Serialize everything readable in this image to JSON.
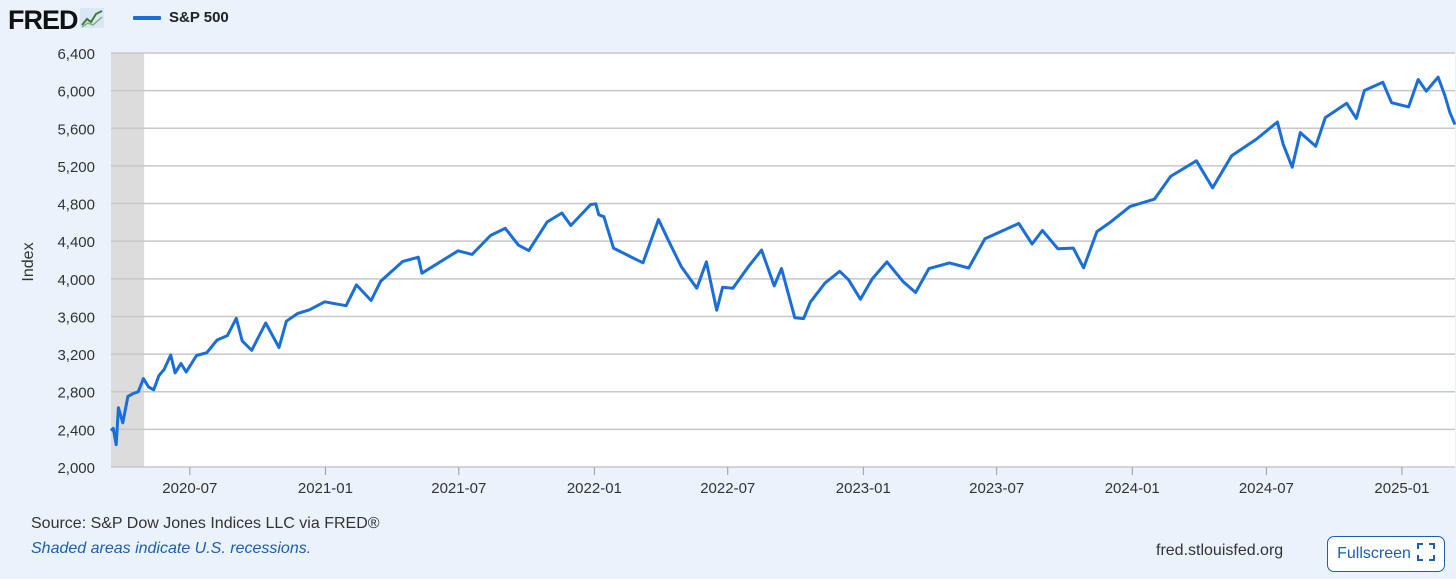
{
  "header": {
    "logo_text": "FRED",
    "logo_icon": "line-chart-icon",
    "series_label": "S&P 500"
  },
  "footer": {
    "source": "Source: S&P Dow Jones Indices LLC via FRED®",
    "note": "Shaded areas indicate U.S. recessions.",
    "url": "fred.stlouisfed.org",
    "fullscreen_label": "Fullscreen",
    "fullscreen_icon": "fullscreen-icon"
  },
  "colors": {
    "line": "#1a6ed8",
    "background": "#eaf2fc",
    "plot": "#ffffff",
    "grid": "#c8c8c8",
    "recession": "#dcdcdc",
    "accent": "#1b5fae"
  },
  "chart_data": {
    "type": "line",
    "ylabel": "Index",
    "ylim": [
      2000,
      6400
    ],
    "yticks": [
      2000,
      2400,
      2800,
      3200,
      3600,
      4000,
      4400,
      4800,
      5200,
      5600,
      6000,
      6400
    ],
    "ytick_labels": [
      "2,000",
      "2,400",
      "2,800",
      "3,200",
      "3,600",
      "4,000",
      "4,400",
      "4,800",
      "5,200",
      "5,600",
      "6,000",
      "6,400"
    ],
    "xlim": [
      "2020-03-16",
      "2025-03-14"
    ],
    "xticks": [
      "2020-07-01",
      "2021-01-01",
      "2021-07-01",
      "2022-01-01",
      "2022-07-01",
      "2023-01-01",
      "2023-07-01",
      "2024-01-01",
      "2024-07-01",
      "2025-01-01"
    ],
    "xtick_labels": [
      "2020-07",
      "2021-01",
      "2021-07",
      "2022-01",
      "2022-07",
      "2023-01",
      "2023-07",
      "2024-01",
      "2024-07",
      "2025-01"
    ],
    "recession": {
      "start": "2020-03-16",
      "end": "2020-04-30"
    },
    "grid": true,
    "series": [
      {
        "name": "S&P 500",
        "x": [
          "2020-03-16",
          "2020-03-19",
          "2020-03-23",
          "2020-03-26",
          "2020-04-01",
          "2020-04-08",
          "2020-04-15",
          "2020-04-22",
          "2020-04-29",
          "2020-05-06",
          "2020-05-13",
          "2020-05-20",
          "2020-05-27",
          "2020-06-05",
          "2020-06-11",
          "2020-06-19",
          "2020-06-26",
          "2020-07-10",
          "2020-07-24",
          "2020-08-07",
          "2020-08-21",
          "2020-09-02",
          "2020-09-10",
          "2020-09-23",
          "2020-10-12",
          "2020-10-30",
          "2020-11-09",
          "2020-11-24",
          "2020-12-10",
          "2020-12-31",
          "2021-01-29",
          "2021-02-12",
          "2021-03-04",
          "2021-03-17",
          "2021-04-16",
          "2021-05-07",
          "2021-05-12",
          "2021-06-30",
          "2021-07-19",
          "2021-08-13",
          "2021-09-02",
          "2021-09-20",
          "2021-10-04",
          "2021-10-29",
          "2021-11-18",
          "2021-11-30",
          "2021-12-27",
          "2022-01-03",
          "2022-01-07",
          "2022-01-14",
          "2022-01-27",
          "2022-02-23",
          "2022-03-08",
          "2022-03-29",
          "2022-04-12",
          "2022-04-29",
          "2022-05-20",
          "2022-06-02",
          "2022-06-16",
          "2022-06-24",
          "2022-07-08",
          "2022-07-29",
          "2022-08-16",
          "2022-09-02",
          "2022-09-12",
          "2022-09-30",
          "2022-10-12",
          "2022-10-21",
          "2022-11-10",
          "2022-11-30",
          "2022-12-12",
          "2022-12-28",
          "2023-01-13",
          "2023-02-02",
          "2023-02-24",
          "2023-03-13",
          "2023-03-31",
          "2023-04-28",
          "2023-05-24",
          "2023-06-15",
          "2023-07-31",
          "2023-08-18",
          "2023-09-01",
          "2023-09-22",
          "2023-10-13",
          "2023-10-27",
          "2023-11-14",
          "2023-12-01",
          "2023-12-29",
          "2024-01-31",
          "2024-02-22",
          "2024-03-28",
          "2024-04-19",
          "2024-05-15",
          "2024-06-18",
          "2024-07-16",
          "2024-07-24",
          "2024-08-05",
          "2024-08-16",
          "2024-09-06",
          "2024-09-19",
          "2024-10-18",
          "2024-10-31",
          "2024-11-11",
          "2024-12-06",
          "2024-12-18",
          "2025-01-10",
          "2025-01-23",
          "2025-02-03",
          "2025-02-19",
          "2025-02-28",
          "2025-03-07",
          "2025-03-14"
        ],
        "values": [
          2386,
          2410,
          2237,
          2630,
          2470,
          2750,
          2780,
          2800,
          2940,
          2850,
          2820,
          2970,
          3036,
          3190,
          3000,
          3100,
          3010,
          3185,
          3215,
          3350,
          3397,
          3580,
          3340,
          3240,
          3530,
          3270,
          3550,
          3630,
          3670,
          3756,
          3714,
          3935,
          3770,
          3975,
          4185,
          4230,
          4060,
          4298,
          4260,
          4460,
          4537,
          4357,
          4300,
          4605,
          4700,
          4567,
          4790,
          4797,
          4680,
          4660,
          4326,
          4220,
          4170,
          4630,
          4400,
          4130,
          3900,
          4180,
          3666,
          3911,
          3900,
          4130,
          4305,
          3925,
          4110,
          3586,
          3577,
          3752,
          3956,
          4080,
          3990,
          3783,
          3999,
          4180,
          3970,
          3855,
          4109,
          4169,
          4115,
          4425,
          4589,
          4370,
          4515,
          4320,
          4327,
          4117,
          4502,
          4594,
          4770,
          4846,
          5088,
          5254,
          4967,
          5308,
          5487,
          5667,
          5427,
          5186,
          5554,
          5408,
          5713,
          5865,
          5705,
          6001,
          6090,
          5872,
          5827,
          6118,
          5994,
          6144,
          5954,
          5770,
          5639
        ]
      }
    ]
  }
}
